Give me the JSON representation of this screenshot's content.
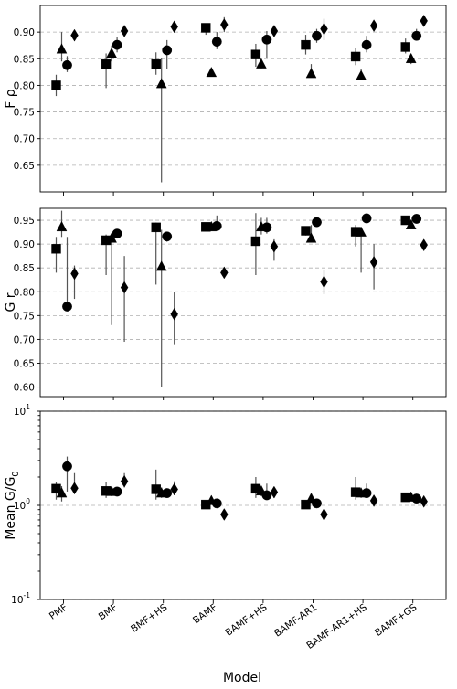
{
  "chart_data": [
    {
      "type": "scatter",
      "ylabel": "F ρ",
      "ylim": [
        0.6,
        0.95
      ],
      "yticks": [
        "0.65",
        "0.70",
        "0.75",
        "0.80",
        "0.85",
        "0.90"
      ],
      "ytick_values": [
        0.65,
        0.7,
        0.75,
        0.8,
        0.85,
        0.9
      ],
      "log_y": false,
      "grid": "y-dashed",
      "categories": [
        "PMF",
        "BMF",
        "BMF+HS",
        "BAMF",
        "BAMF+HS",
        "BAMF-AR1",
        "BAMF-AR1+HS",
        "BAMF+GS"
      ],
      "series": [
        {
          "marker": "square",
          "values": [
            0.8,
            0.84,
            0.84,
            0.908,
            0.858,
            0.876,
            0.854,
            0.872
          ],
          "err_low": [
            0.78,
            0.795,
            0.82,
            0.895,
            0.835,
            0.858,
            0.838,
            0.86
          ],
          "err_high": [
            0.82,
            0.86,
            0.862,
            0.915,
            0.878,
            0.895,
            0.87,
            0.888
          ]
        },
        {
          "marker": "triangle",
          "values": [
            0.868,
            0.86,
            0.803,
            0.824,
            0.84,
            0.822,
            0.818,
            0.85
          ],
          "err_low": [
            0.845,
            0.845,
            0.618,
            0.82,
            0.832,
            0.818,
            0.81,
            0.84
          ],
          "err_high": [
            0.9,
            0.875,
            0.852,
            0.828,
            0.85,
            0.84,
            0.83,
            0.858
          ]
        },
        {
          "marker": "circle",
          "values": [
            0.838,
            0.876,
            0.866,
            0.882,
            0.886,
            0.893,
            0.876,
            0.893
          ],
          "err_low": [
            0.825,
            0.862,
            0.83,
            0.868,
            0.852,
            0.88,
            0.862,
            0.885
          ],
          "err_high": [
            0.855,
            0.89,
            0.885,
            0.9,
            0.902,
            0.906,
            0.893,
            0.906
          ]
        },
        {
          "marker": "diamond",
          "values": [
            0.894,
            0.902,
            0.91,
            0.914,
            0.902,
            0.906,
            0.912,
            0.921
          ],
          "err_low": [
            0.885,
            0.895,
            0.9,
            0.9,
            0.895,
            0.885,
            0.905,
            0.915
          ],
          "err_high": [
            0.904,
            0.91,
            0.92,
            0.928,
            0.91,
            0.925,
            0.92,
            0.928
          ]
        }
      ]
    },
    {
      "type": "scatter",
      "ylabel": "G r",
      "ylim": [
        0.58,
        0.975
      ],
      "yticks": [
        "0.60",
        "0.65",
        "0.70",
        "0.75",
        "0.80",
        "0.85",
        "0.90",
        "0.95"
      ],
      "ytick_values": [
        0.6,
        0.65,
        0.7,
        0.75,
        0.8,
        0.85,
        0.9,
        0.95
      ],
      "log_y": false,
      "grid": "y-dashed",
      "categories": [
        "PMF",
        "BMF",
        "BMF+HS",
        "BAMF",
        "BAMF+HS",
        "BAMF-AR1",
        "BAMF-AR1+HS",
        "BAMF+GS"
      ],
      "series": [
        {
          "marker": "square",
          "values": [
            0.89,
            0.908,
            0.935,
            0.936,
            0.906,
            0.928,
            0.926,
            0.95
          ],
          "err_low": [
            0.84,
            0.835,
            0.815,
            0.93,
            0.835,
            0.918,
            0.895,
            0.942
          ],
          "err_high": [
            0.915,
            0.92,
            0.945,
            0.942,
            0.965,
            0.935,
            0.94,
            0.956
          ]
        },
        {
          "marker": "triangle",
          "values": [
            0.936,
            0.912,
            0.853,
            0.936,
            0.936,
            0.912,
            0.925,
            0.94
          ],
          "err_low": [
            0.915,
            0.73,
            0.6,
            0.932,
            0.92,
            0.905,
            0.84,
            0.935
          ],
          "err_high": [
            0.97,
            0.918,
            0.93,
            0.941,
            0.955,
            0.94,
            0.933,
            0.945
          ]
        },
        {
          "marker": "circle",
          "values": [
            0.769,
            0.922,
            0.916,
            0.938,
            0.935,
            0.946,
            0.954,
            0.953
          ],
          "err_low": [
            0.765,
            0.915,
            0.905,
            0.935,
            0.922,
            0.942,
            0.95,
            0.948
          ],
          "err_high": [
            0.915,
            0.928,
            0.925,
            0.96,
            0.955,
            0.95,
            0.958,
            0.958
          ]
        },
        {
          "marker": "diamond",
          "values": [
            0.838,
            0.809,
            0.753,
            0.84,
            0.895,
            0.821,
            0.862,
            0.898
          ],
          "err_low": [
            0.785,
            0.695,
            0.69,
            0.836,
            0.865,
            0.795,
            0.805,
            0.893
          ],
          "err_high": [
            0.855,
            0.875,
            0.8,
            0.845,
            0.91,
            0.845,
            0.9,
            0.903
          ]
        }
      ]
    },
    {
      "type": "scatter",
      "ylabel": "Mean G/G",
      "ylabel_subscript": "0",
      "ylim": [
        0.1,
        10
      ],
      "yticks": [
        "10",
        "10",
        "10"
      ],
      "ytick_exponents": [
        "-1",
        "0",
        "1"
      ],
      "ytick_values": [
        0.1,
        1,
        10
      ],
      "log_y": true,
      "grid": "y-dashed",
      "categories": [
        "PMF",
        "BMF",
        "BMF+HS",
        "BAMF",
        "BAMF+HS",
        "BAMF-AR1",
        "BAMF-AR1+HS",
        "BAMF+GS"
      ],
      "series": [
        {
          "marker": "square",
          "values": [
            1.5,
            1.42,
            1.48,
            1.02,
            1.5,
            1.02,
            1.38,
            1.22
          ],
          "err_low": [
            1.15,
            1.2,
            1.15,
            0.95,
            1.2,
            0.93,
            1.15,
            1.1
          ],
          "err_high": [
            1.75,
            1.75,
            2.4,
            1.1,
            2.0,
            1.1,
            2.0,
            1.32
          ]
        },
        {
          "marker": "triangle",
          "values": [
            1.35,
            1.4,
            1.35,
            1.12,
            1.42,
            1.18,
            1.35,
            1.22
          ],
          "err_low": [
            1.1,
            1.25,
            1.2,
            1.05,
            1.25,
            1.1,
            1.2,
            1.15
          ],
          "err_high": [
            1.6,
            1.55,
            1.55,
            1.2,
            1.6,
            1.25,
            1.5,
            1.3
          ]
        },
        {
          "marker": "circle",
          "values": [
            2.6,
            1.4,
            1.35,
            1.05,
            1.28,
            1.05,
            1.35,
            1.18
          ],
          "err_low": [
            1.4,
            1.28,
            1.22,
            0.98,
            1.15,
            0.98,
            1.25,
            1.1
          ],
          "err_high": [
            3.3,
            1.55,
            1.5,
            1.12,
            1.7,
            1.12,
            1.7,
            1.28
          ]
        },
        {
          "marker": "diamond",
          "values": [
            1.52,
            1.8,
            1.48,
            0.8,
            1.38,
            0.8,
            1.12,
            1.1
          ],
          "err_low": [
            1.35,
            1.55,
            1.3,
            0.72,
            1.2,
            0.72,
            1.0,
            1.0
          ],
          "err_high": [
            2.2,
            2.2,
            1.8,
            0.88,
            1.55,
            0.88,
            1.25,
            1.22
          ]
        }
      ]
    }
  ],
  "xlabel": "Model"
}
